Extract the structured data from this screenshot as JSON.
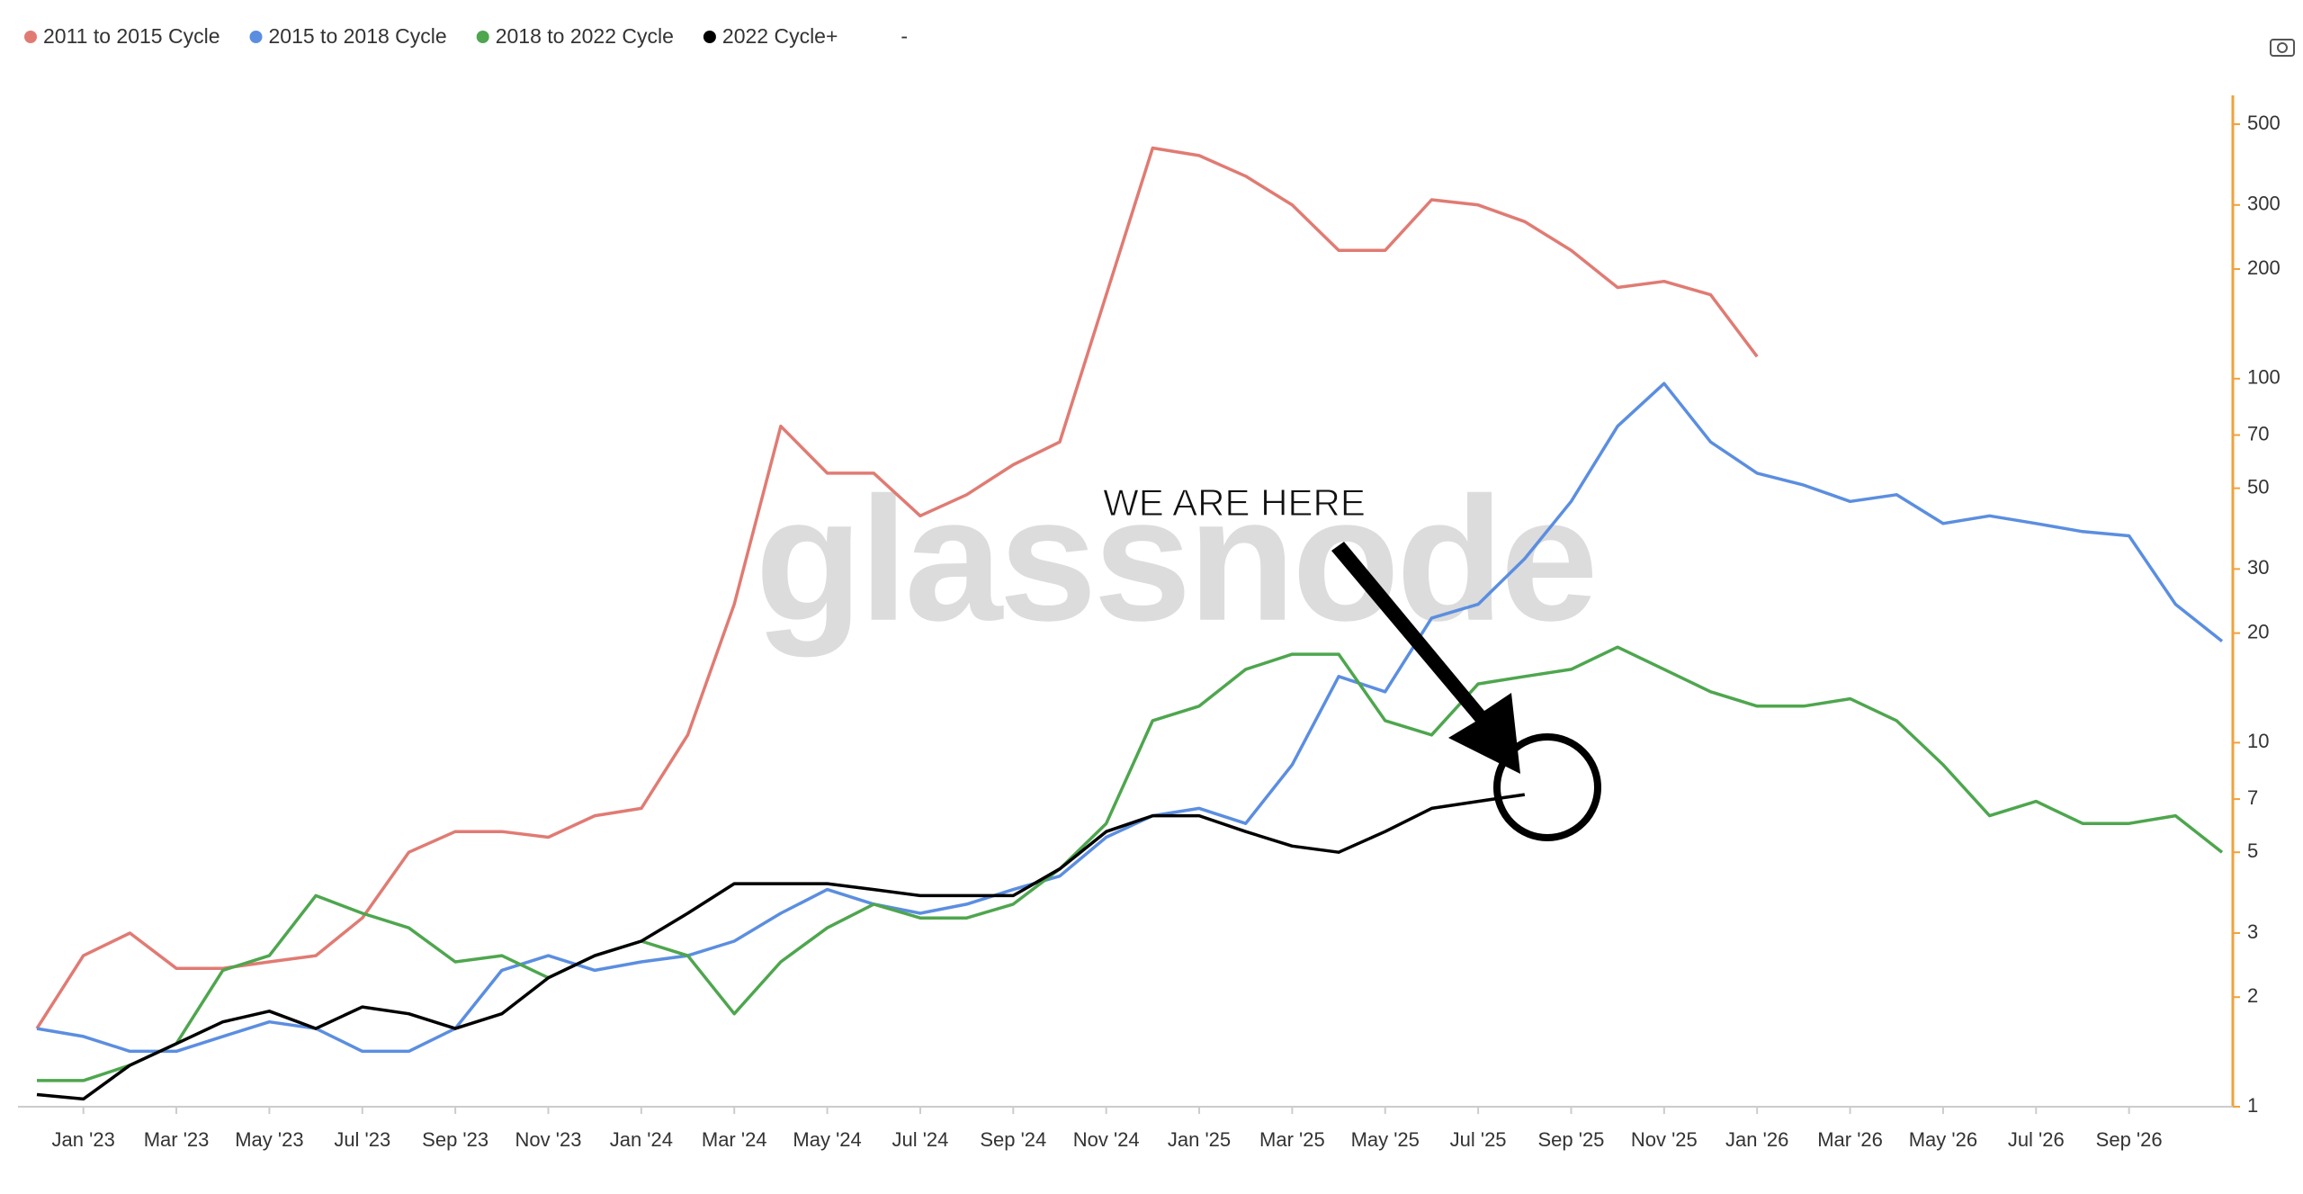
{
  "chart_data": {
    "type": "line",
    "log_scale": true,
    "annotation": "WE ARE HERE",
    "watermark": "glassnode",
    "legend_note": "-",
    "axis_color": "#f0a23c",
    "categories": [
      null,
      "Jan '23",
      null,
      "Mar '23",
      null,
      "May '23",
      null,
      "Jul '23",
      null,
      "Sep '23",
      null,
      "Nov '23",
      null,
      "Jan '24",
      null,
      "Mar '24",
      null,
      "May '24",
      null,
      "Jul '24",
      null,
      "Sep '24",
      null,
      "Nov '24",
      null,
      "Jan '25",
      null,
      "Mar '25",
      null,
      "May '25",
      null,
      "Jul '25",
      null,
      "Sep '25",
      null,
      "Nov '25",
      null,
      "Jan '26",
      null,
      "Mar '26",
      null,
      "May '26",
      null,
      "Jul '26",
      null,
      "Sep '26",
      null,
      null
    ],
    "series": [
      {
        "name": "2011 to 2015 Cycle",
        "color": "#e07b73",
        "values": [
          1.64,
          2.6,
          3.0,
          2.4,
          2.4,
          2.5,
          2.6,
          3.3,
          5.0,
          5.7,
          5.7,
          5.5,
          6.3,
          6.6,
          10.5,
          24,
          74,
          55,
          55,
          42,
          48,
          58,
          67,
          170,
          430,
          410,
          360,
          300,
          225,
          225,
          310,
          300,
          270,
          225,
          178,
          185,
          170,
          115,
          null,
          null,
          null,
          null,
          null,
          null,
          null,
          null,
          null,
          null
        ]
      },
      {
        "name": "2015 to 2018 Cycle",
        "color": "#5b8ee0",
        "values": [
          1.64,
          1.56,
          1.42,
          1.42,
          1.56,
          1.71,
          1.64,
          1.42,
          1.42,
          1.64,
          2.37,
          2.6,
          2.37,
          2.5,
          2.6,
          2.85,
          3.4,
          3.95,
          3.6,
          3.4,
          3.6,
          3.95,
          4.3,
          5.5,
          6.3,
          6.6,
          6.0,
          8.7,
          15.2,
          13.8,
          22,
          24,
          32,
          46,
          74,
          97,
          67,
          55,
          51,
          46,
          48,
          40,
          42,
          40,
          38,
          37,
          24,
          19
        ]
      },
      {
        "name": "2018 to 2022 Cycle",
        "color": "#4ea64e",
        "values": [
          1.18,
          1.18,
          1.3,
          1.49,
          2.37,
          2.6,
          3.8,
          3.4,
          3.1,
          2.5,
          2.6,
          2.26,
          2.6,
          2.85,
          2.6,
          1.8,
          2.5,
          3.1,
          3.6,
          3.3,
          3.3,
          3.6,
          4.5,
          6.0,
          11.5,
          12.6,
          15.9,
          17.5,
          17.5,
          11.5,
          10.5,
          14.5,
          15.2,
          15.9,
          18.3,
          15.9,
          13.8,
          12.6,
          12.6,
          13.2,
          11.5,
          8.7,
          6.3,
          6.9,
          6.0,
          6.0,
          6.3,
          5.0
        ]
      },
      {
        "name": "2022 Cycle+",
        "color": "#000000",
        "values": [
          1.08,
          1.05,
          1.3,
          1.49,
          1.71,
          1.83,
          1.64,
          1.88,
          1.8,
          1.64,
          1.8,
          2.26,
          2.6,
          2.85,
          3.4,
          4.1,
          4.1,
          4.1,
          3.95,
          3.8,
          3.8,
          3.8,
          4.5,
          5.7,
          6.3,
          6.3,
          5.7,
          5.2,
          5.0,
          5.7,
          6.6,
          6.9,
          7.2,
          null,
          null,
          null,
          null,
          null,
          null,
          null,
          null,
          null,
          null,
          null,
          null,
          null,
          null,
          null
        ]
      }
    ],
    "ylim": [
      1,
      600
    ],
    "yticks": [
      1,
      2,
      3,
      5,
      7,
      10,
      20,
      30,
      50,
      70,
      100,
      200,
      300,
      500
    ]
  }
}
